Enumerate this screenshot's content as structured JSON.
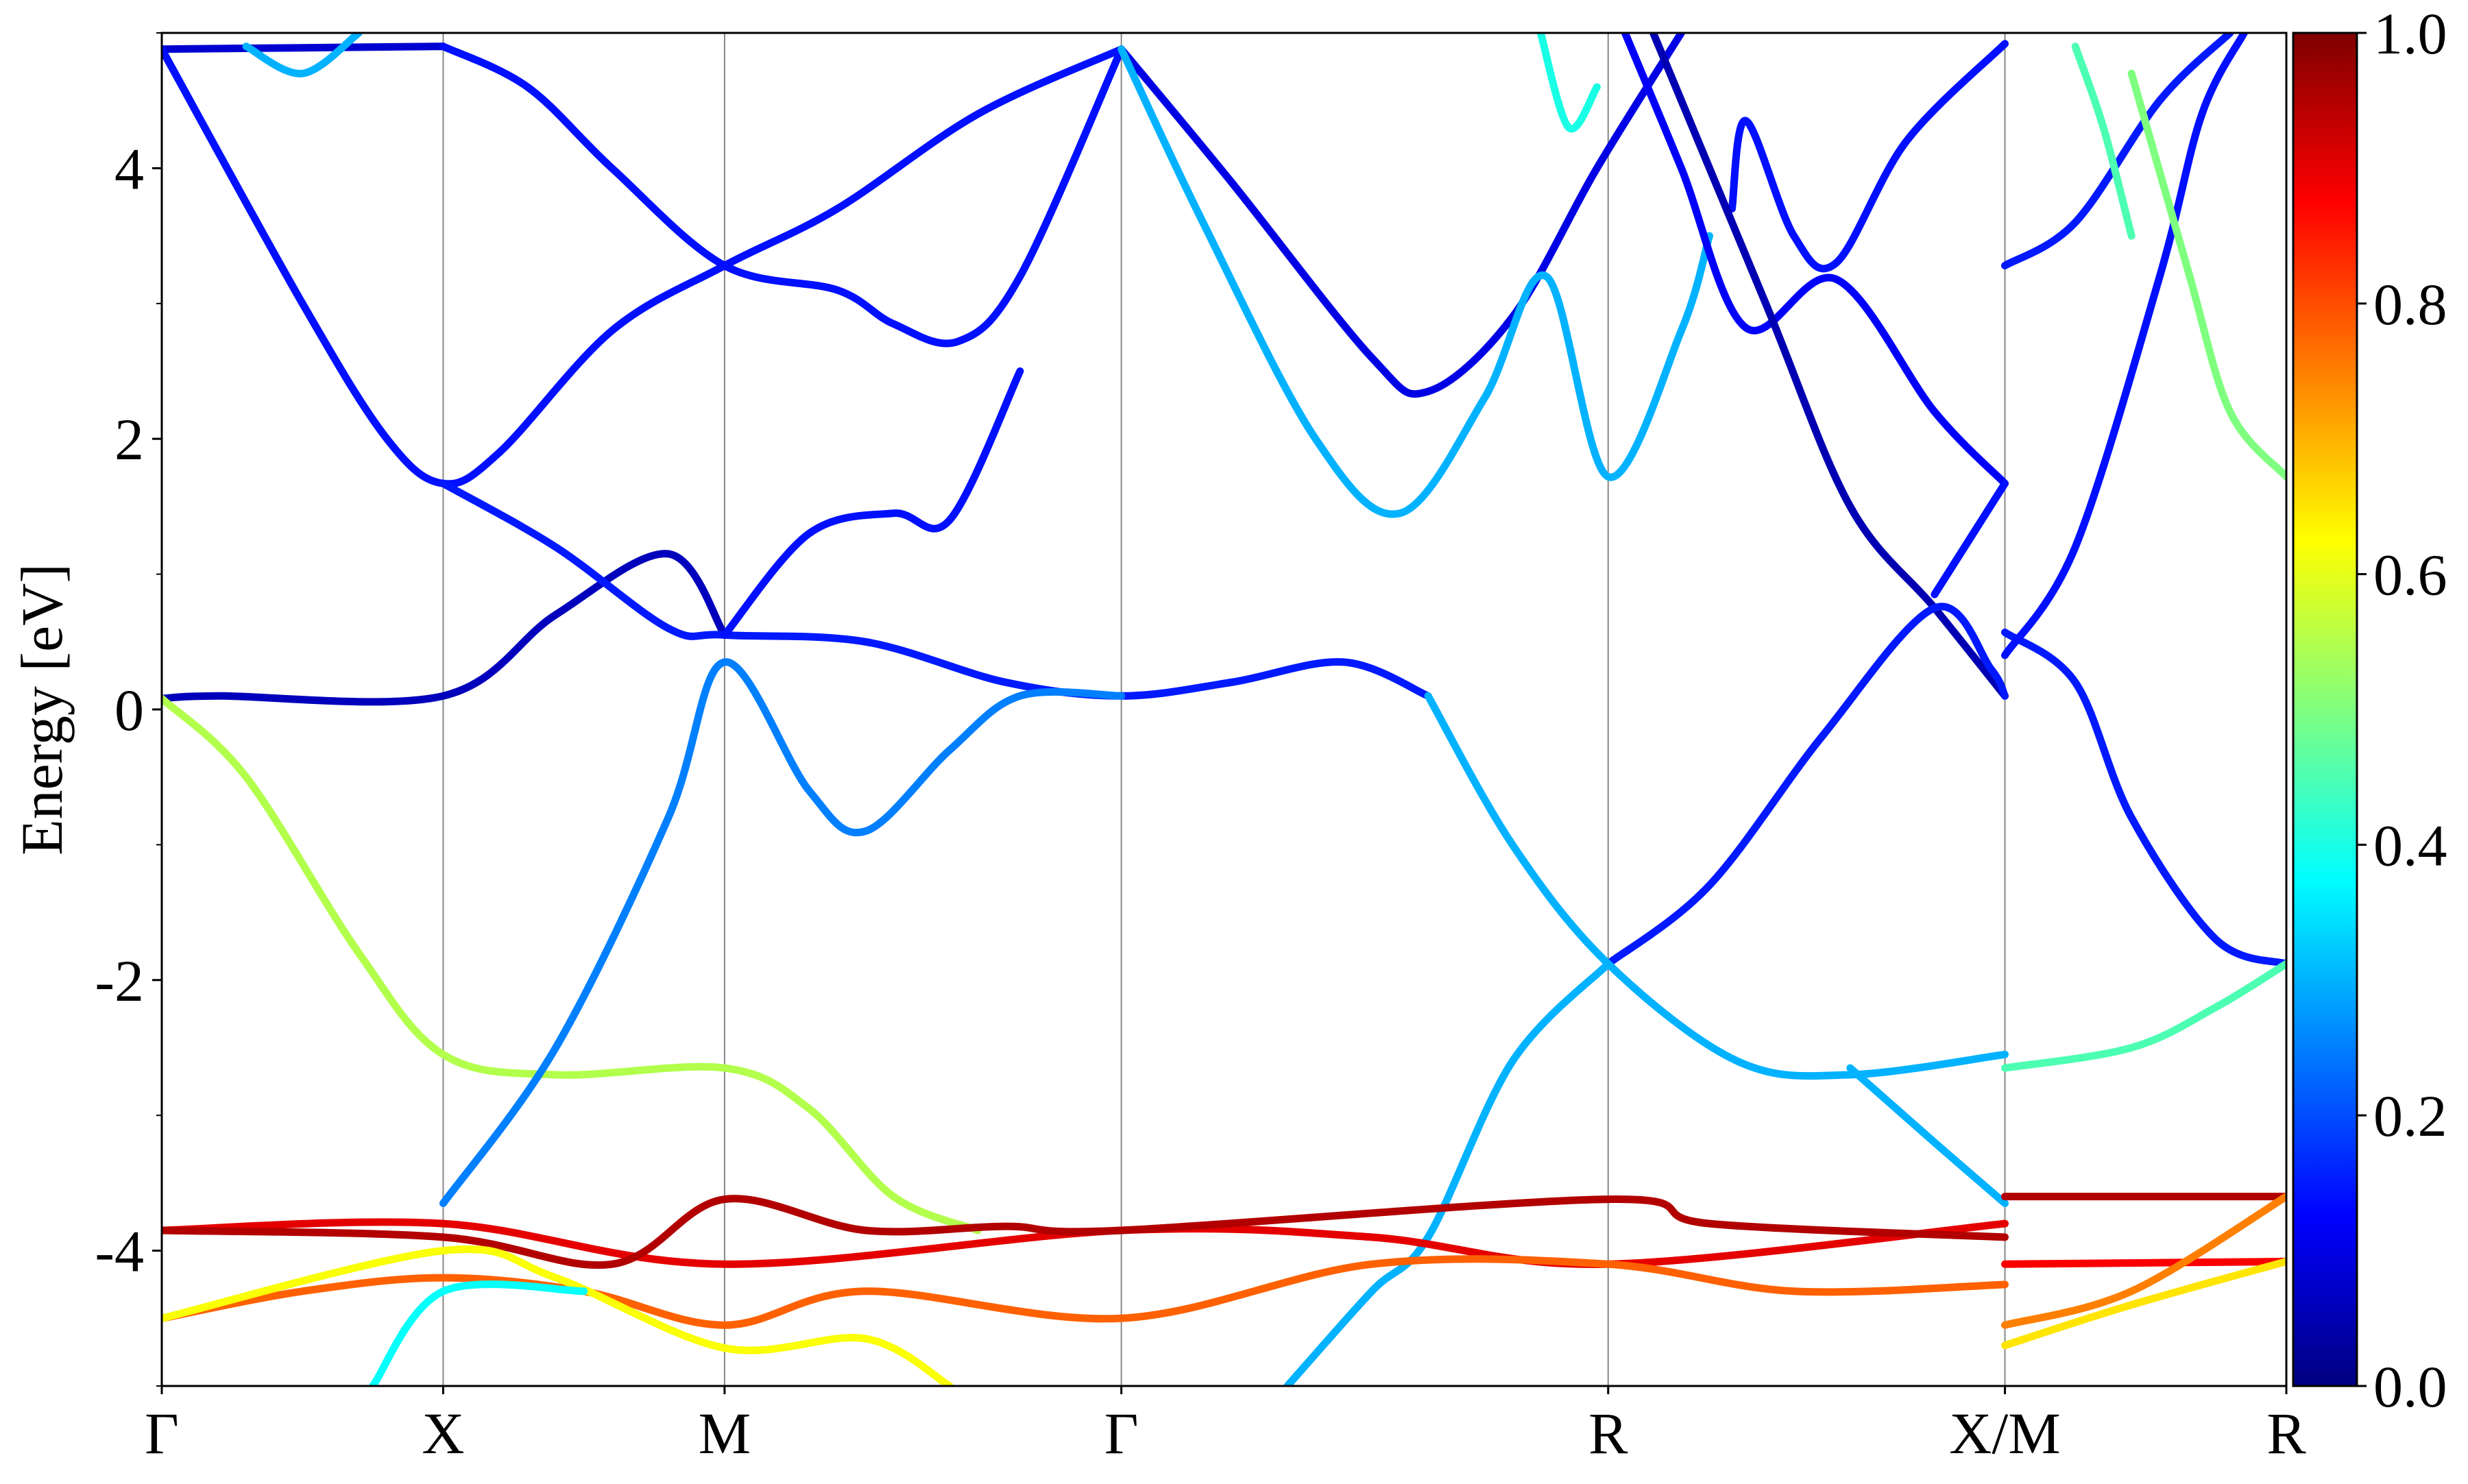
{
  "chart_data": {
    "type": "line",
    "title": "",
    "xlabel": "",
    "ylabel": "Energy [eV]",
    "ylim": [
      -5,
      5
    ],
    "y_ticks": [
      4,
      2,
      0,
      -2,
      -4
    ],
    "y_tick_labels": [
      "4",
      "2",
      "0",
      "-2",
      "-4"
    ],
    "y_minor_ticks": [
      -5,
      -3,
      -1,
      1,
      3,
      5
    ],
    "k_points": [
      {
        "label": "Γ",
        "x": 0
      },
      {
        "label": "X",
        "x": 1
      },
      {
        "label": "M",
        "x": 2
      },
      {
        "label": "Γ",
        "x": 3.41
      },
      {
        "label": "R",
        "x": 5.14
      },
      {
        "label": "X/M",
        "x": 6.55
      },
      {
        "label": "R",
        "x": 7.55
      }
    ],
    "xlim": [
      0,
      7.55
    ],
    "colorbar": {
      "colormap": "jet",
      "range": [
        0.0,
        1.0
      ],
      "ticks": [
        0.0,
        0.2,
        0.4,
        0.6,
        0.8,
        1.0
      ],
      "tick_labels": [
        "0.0",
        "0.2",
        "0.4",
        "0.6",
        "0.8",
        "1.0"
      ],
      "stops": [
        "#00007f",
        "#0000ff",
        "#007fff",
        "#00ffff",
        "#7fff7f",
        "#ffff00",
        "#ff7f00",
        "#ff0000",
        "#7f0000"
      ]
    },
    "series": [
      {
        "values": [
          [
            0,
            4.88
          ],
          [
            1,
            4.9
          ]
        ],
        "c": 0.08
      },
      {
        "values": [
          [
            0,
            4.88
          ],
          [
            0.5,
            3.0
          ],
          [
            0.8,
            2.0
          ],
          [
            1,
            1.67
          ],
          [
            1.2,
            1.9
          ],
          [
            1.6,
            2.8
          ],
          [
            2,
            3.28
          ],
          [
            2.4,
            3.7
          ],
          [
            2.9,
            4.4
          ],
          [
            3.41,
            4.88
          ]
        ],
        "c": 0.14
      },
      {
        "values": [
          [
            1,
            4.9
          ],
          [
            1.3,
            4.6
          ],
          [
            1.6,
            4.0
          ],
          [
            2,
            3.28
          ],
          [
            2.4,
            3.1
          ],
          [
            2.6,
            2.85
          ],
          [
            2.83,
            2.72
          ],
          [
            3.05,
            3.2
          ],
          [
            3.41,
            4.88
          ]
        ],
        "c": 0.14
      },
      {
        "values": [
          [
            3.41,
            4.88
          ],
          [
            3.8,
            3.9
          ],
          [
            4.3,
            2.6
          ],
          [
            4.5,
            2.35
          ],
          [
            4.8,
            2.9
          ],
          [
            5.1,
            4.0
          ],
          [
            5.4,
            5.0
          ]
        ],
        "c": 0.1
      },
      {
        "values": [
          [
            3.41,
            4.88
          ],
          [
            3.7,
            3.6
          ],
          [
            4.1,
            2.0
          ],
          [
            4.4,
            1.45
          ],
          [
            4.7,
            2.3
          ],
          [
            4.92,
            3.2
          ],
          [
            5.14,
            1.72
          ],
          [
            5.4,
            2.8
          ],
          [
            5.5,
            3.5
          ]
        ],
        "c": 0.3
      },
      {
        "values": [
          [
            5.58,
            3.7
          ],
          [
            5.63,
            4.35
          ],
          [
            5.8,
            3.5
          ],
          [
            5.95,
            3.3
          ],
          [
            6.2,
            4.2
          ],
          [
            6.55,
            4.92
          ]
        ],
        "c": 0.14
      },
      {
        "values": [
          [
            5.2,
            5.0
          ],
          [
            5.4,
            4.0
          ],
          [
            5.63,
            2.82
          ],
          [
            5.95,
            3.18
          ],
          [
            6.3,
            2.2
          ],
          [
            6.55,
            1.67
          ]
        ],
        "c": 0.12
      },
      {
        "values": [
          [
            5.3,
            5.0
          ],
          [
            5.7,
            3.0
          ],
          [
            6.0,
            1.5
          ],
          [
            6.3,
            0.75
          ],
          [
            6.55,
            0.1
          ]
        ],
        "c": 0.05
      },
      {
        "values": [
          [
            5.14,
            -1.88
          ],
          [
            5.5,
            -1.3
          ],
          [
            5.9,
            -0.2
          ],
          [
            6.3,
            0.75
          ],
          [
            6.5,
            0.3
          ],
          [
            6.55,
            0.1
          ]
        ],
        "c": 0.15
      },
      {
        "values": [
          [
            6.3,
            0.85
          ],
          [
            6.55,
            1.67
          ]
        ],
        "c": 0.14
      },
      {
        "values": [
          [
            0,
            0.08
          ],
          [
            0.2,
            0.1
          ],
          [
            1,
            0.1
          ],
          [
            1.4,
            0.7
          ],
          [
            1.8,
            1.15
          ],
          [
            2,
            0.55
          ]
        ],
        "c": 0.06
      },
      {
        "values": [
          [
            1,
            1.67
          ],
          [
            1.4,
            1.2
          ],
          [
            1.8,
            0.6
          ],
          [
            2,
            0.55
          ],
          [
            2.5,
            0.5
          ],
          [
            3.0,
            0.2
          ],
          [
            3.41,
            0.1
          ],
          [
            3.8,
            0.2
          ],
          [
            4.2,
            0.35
          ],
          [
            4.5,
            0.1
          ]
        ],
        "c": 0.15
      },
      {
        "values": [
          [
            2,
            0.55
          ],
          [
            2.3,
            1.3
          ],
          [
            2.6,
            1.45
          ],
          [
            2.8,
            1.4
          ],
          [
            3.05,
            2.5
          ]
        ],
        "c": 0.14
      },
      {
        "values": [
          [
            0,
            0.08
          ],
          [
            0.3,
            -0.5
          ],
          [
            0.7,
            -1.8
          ],
          [
            1,
            -2.55
          ],
          [
            1.4,
            -2.7
          ],
          [
            2,
            -2.65
          ],
          [
            2.3,
            -2.95
          ],
          [
            2.6,
            -3.6
          ],
          [
            2.9,
            -3.85
          ]
        ],
        "c": 0.55
      },
      {
        "values": [
          [
            1,
            -3.65
          ],
          [
            1.4,
            -2.5
          ],
          [
            1.8,
            -0.8
          ],
          [
            2,
            0.35
          ],
          [
            2.3,
            -0.6
          ],
          [
            2.5,
            -0.9
          ],
          [
            2.8,
            -0.3
          ],
          [
            3.05,
            0.1
          ],
          [
            3.41,
            0.1
          ]
        ],
        "c": 0.25
      },
      {
        "values": [
          [
            4.5,
            0.1
          ],
          [
            4.8,
            -1.0
          ],
          [
            5.14,
            -1.88
          ],
          [
            5.6,
            -2.6
          ],
          [
            6.0,
            -2.7
          ],
          [
            6.55,
            -2.55
          ]
        ],
        "c": 0.3
      },
      {
        "values": [
          [
            5.14,
            -1.88
          ],
          [
            4.8,
            -2.6
          ],
          [
            4.5,
            -3.9
          ],
          [
            4.3,
            -4.3
          ],
          [
            4.0,
            -5.0
          ]
        ],
        "c": 0.3
      },
      {
        "values": [
          [
            6.0,
            -2.65
          ],
          [
            6.3,
            -3.2
          ],
          [
            6.55,
            -3.65
          ]
        ],
        "c": 0.3
      },
      {
        "values": [
          [
            6.55,
            0.57
          ],
          [
            6.8,
            0.2
          ],
          [
            7.0,
            -0.8
          ],
          [
            7.3,
            -1.7
          ],
          [
            7.55,
            -1.88
          ]
        ],
        "c": 0.15
      },
      {
        "values": [
          [
            6.55,
            3.28
          ],
          [
            6.8,
            3.6
          ],
          [
            7.1,
            4.5
          ],
          [
            7.35,
            5.0
          ]
        ],
        "c": 0.15
      },
      {
        "values": [
          [
            6.55,
            0.4
          ],
          [
            6.8,
            1.2
          ],
          [
            7.1,
            3.2
          ],
          [
            7.25,
            4.4
          ],
          [
            7.4,
            5.0
          ]
        ],
        "c": 0.14
      },
      {
        "values": [
          [
            7.0,
            4.7
          ],
          [
            7.2,
            3.25
          ],
          [
            7.35,
            2.2
          ],
          [
            7.55,
            1.72
          ]
        ],
        "c": 0.5
      },
      {
        "values": [
          [
            6.55,
            -2.65
          ],
          [
            7.0,
            -2.5
          ],
          [
            7.3,
            -2.2
          ],
          [
            7.55,
            -1.88
          ]
        ],
        "c": 0.45
      },
      {
        "values": [
          [
            0,
            -3.85
          ],
          [
            1,
            -3.8
          ],
          [
            2,
            -4.1
          ],
          [
            3.41,
            -3.85
          ],
          [
            4.3,
            -3.9
          ],
          [
            5.14,
            -4.1
          ],
          [
            6.55,
            -3.8
          ]
        ],
        "c": 0.9
      },
      {
        "values": [
          [
            0,
            -3.85
          ],
          [
            1,
            -3.9
          ],
          [
            1.6,
            -4.1
          ],
          [
            2,
            -3.62
          ],
          [
            2.5,
            -3.85
          ],
          [
            3.0,
            -3.82
          ],
          [
            3.41,
            -3.85
          ],
          [
            5.14,
            -3.62
          ],
          [
            5.5,
            -3.8
          ],
          [
            6.55,
            -3.9
          ]
        ],
        "c": 0.95
      },
      {
        "values": [
          [
            6.55,
            -3.6
          ],
          [
            7.55,
            -3.6
          ]
        ],
        "c": 0.95
      },
      {
        "values": [
          [
            6.55,
            -4.1
          ],
          [
            7.55,
            -4.08
          ]
        ],
        "c": 0.88
      },
      {
        "values": [
          [
            0,
            -4.5
          ],
          [
            0.5,
            -4.3
          ],
          [
            1,
            -4.2
          ],
          [
            1.5,
            -4.3
          ],
          [
            2,
            -4.55
          ],
          [
            2.5,
            -4.3
          ],
          [
            3.41,
            -4.5
          ],
          [
            4.3,
            -4.1
          ],
          [
            5.14,
            -4.1
          ],
          [
            5.8,
            -4.3
          ],
          [
            6.55,
            -4.25
          ]
        ],
        "c": 0.78
      },
      {
        "values": [
          [
            0,
            -4.5
          ],
          [
            1,
            -4.0
          ],
          [
            1.4,
            -4.2
          ],
          [
            2,
            -4.72
          ],
          [
            2.5,
            -4.65
          ],
          [
            2.8,
            -5.0
          ]
        ],
        "c": 0.62
      },
      {
        "values": [
          [
            6.55,
            -4.55
          ],
          [
            7.0,
            -4.3
          ],
          [
            7.55,
            -3.6
          ]
        ],
        "c": 0.75
      },
      {
        "values": [
          [
            6.55,
            -4.7
          ],
          [
            7.0,
            -4.4
          ],
          [
            7.55,
            -4.08
          ]
        ],
        "c": 0.65
      },
      {
        "values": [
          [
            0.75,
            -5.0
          ],
          [
            1,
            -4.3
          ],
          [
            1.5,
            -4.3
          ]
        ],
        "c": 0.38
      },
      {
        "values": [
          [
            0.3,
            4.9
          ],
          [
            0.5,
            4.7
          ],
          [
            0.7,
            5.0
          ]
        ],
        "c": 0.3
      },
      {
        "values": [
          [
            4.9,
            5.0
          ],
          [
            5.0,
            4.3
          ],
          [
            5.1,
            4.6
          ]
        ],
        "c": 0.4
      },
      {
        "values": [
          [
            6.8,
            4.9
          ],
          [
            6.9,
            4.3
          ],
          [
            7.0,
            3.5
          ]
        ],
        "c": 0.45
      }
    ]
  }
}
